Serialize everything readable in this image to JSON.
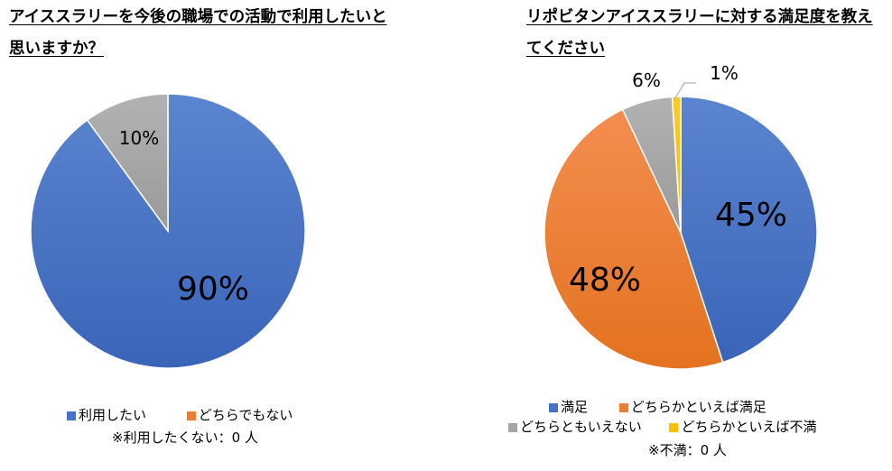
{
  "chart_data": [
    {
      "type": "pie",
      "title": "アイススラリーを今後の職場での活動で利用したいと思いますか？",
      "categories": [
        "利用したい",
        "どちらでもない"
      ],
      "values": [
        90,
        10
      ],
      "data_labels": [
        "90%",
        "10%"
      ],
      "colors": [
        "#4472C4",
        "#A5A5A5"
      ],
      "legend_colors": [
        "#4472C4",
        "#ED7D31"
      ],
      "legend": "bottom",
      "note": "※利用したくない：0 人"
    },
    {
      "type": "pie",
      "title": "リポビタンアイススラリーに対する満足度を教えてください",
      "categories": [
        "満足",
        "どちらかといえば満足",
        "どちらともいえない",
        "どちらかといえば不満"
      ],
      "values": [
        45,
        48,
        6,
        1
      ],
      "data_labels": [
        "45%",
        "48%",
        "6%",
        "1%"
      ],
      "colors": [
        "#4472C4",
        "#ED7D31",
        "#A5A5A5",
        "#FFC000"
      ],
      "legend": "bottom",
      "note": "※不満：0 人"
    }
  ]
}
